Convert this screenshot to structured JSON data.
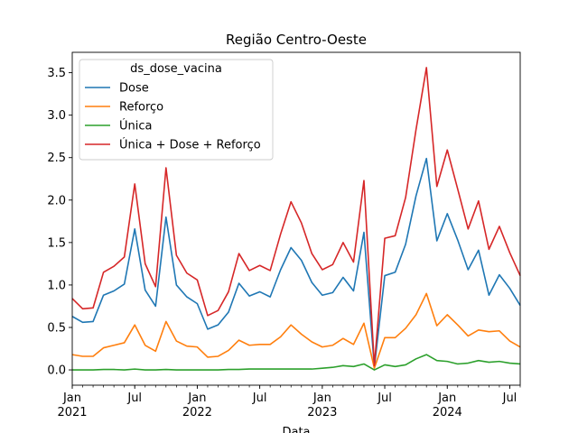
{
  "chart_data": {
    "type": "line",
    "title": "Região Centro-Oeste",
    "xlabel": "Data",
    "ylabel": "",
    "ylim": [
      -0.18,
      3.74
    ],
    "xlim": [
      "2021-01",
      "2024-08"
    ],
    "yticks": [
      0.0,
      0.5,
      1.0,
      1.5,
      2.0,
      2.5,
      3.0,
      3.5
    ],
    "ytick_labels": [
      "0.0",
      "0.5",
      "1.0",
      "1.5",
      "2.0",
      "2.5",
      "3.0",
      "3.5"
    ],
    "xticks": [
      {
        "x": "2021-01",
        "label": "Jan",
        "sublabel": "2021"
      },
      {
        "x": "2021-07",
        "label": "Jul",
        "sublabel": ""
      },
      {
        "x": "2022-01",
        "label": "Jan",
        "sublabel": "2022"
      },
      {
        "x": "2022-07",
        "label": "Jul",
        "sublabel": ""
      },
      {
        "x": "2023-01",
        "label": "Jan",
        "sublabel": "2023"
      },
      {
        "x": "2023-07",
        "label": "Jul",
        "sublabel": ""
      },
      {
        "x": "2024-01",
        "label": "Jan",
        "sublabel": "2024"
      },
      {
        "x": "2024-07",
        "label": "Jul",
        "sublabel": ""
      }
    ],
    "legend": {
      "title": "ds_dose_vacina",
      "placement": "upper-left"
    },
    "grid": false,
    "x": [
      "2021-01",
      "2021-02",
      "2021-03",
      "2021-04",
      "2021-05",
      "2021-06",
      "2021-07",
      "2021-08",
      "2021-09",
      "2021-10",
      "2021-11",
      "2021-12",
      "2022-01",
      "2022-02",
      "2022-03",
      "2022-04",
      "2022-05",
      "2022-06",
      "2022-07",
      "2022-08",
      "2022-09",
      "2022-10",
      "2022-11",
      "2022-12",
      "2023-01",
      "2023-02",
      "2023-03",
      "2023-04",
      "2023-05",
      "2023-06",
      "2023-07",
      "2023-08",
      "2023-09",
      "2023-10",
      "2023-11",
      "2023-12",
      "2024-01",
      "2024-02",
      "2024-03",
      "2024-04",
      "2024-05",
      "2024-06",
      "2024-07",
      "2024-08"
    ],
    "series": [
      {
        "name": "Dose",
        "color": "#1f77b4",
        "values": [
          0.63,
          0.56,
          0.57,
          0.88,
          0.93,
          1.01,
          1.66,
          0.94,
          0.75,
          1.8,
          1.0,
          0.86,
          0.78,
          0.48,
          0.53,
          0.68,
          1.02,
          0.87,
          0.92,
          0.86,
          1.18,
          1.44,
          1.29,
          1.03,
          0.88,
          0.91,
          1.09,
          0.93,
          1.62,
          0.03,
          1.11,
          1.15,
          1.48,
          2.05,
          2.49,
          1.52,
          1.84,
          1.53,
          1.18,
          1.41,
          0.88,
          1.12,
          0.96,
          0.76
        ]
      },
      {
        "name": "Reforço",
        "color": "#ff7f0e",
        "values": [
          0.18,
          0.16,
          0.16,
          0.26,
          0.29,
          0.32,
          0.53,
          0.29,
          0.22,
          0.57,
          0.34,
          0.28,
          0.27,
          0.15,
          0.16,
          0.23,
          0.35,
          0.29,
          0.3,
          0.3,
          0.39,
          0.53,
          0.42,
          0.33,
          0.27,
          0.29,
          0.37,
          0.3,
          0.55,
          0.02,
          0.38,
          0.38,
          0.49,
          0.65,
          0.9,
          0.52,
          0.65,
          0.53,
          0.4,
          0.47,
          0.45,
          0.46,
          0.34,
          0.27
        ]
      },
      {
        "name": "Única",
        "color": "#2ca02c",
        "values": [
          0.0,
          0.0,
          0.0,
          0.005,
          0.005,
          0.0,
          0.01,
          0.0,
          0.0,
          0.005,
          0.0,
          0.0,
          0.0,
          0.0,
          0.0,
          0.005,
          0.005,
          0.01,
          0.01,
          0.01,
          0.01,
          0.01,
          0.01,
          0.01,
          0.02,
          0.03,
          0.05,
          0.04,
          0.07,
          0.0,
          0.06,
          0.04,
          0.06,
          0.13,
          0.18,
          0.11,
          0.1,
          0.07,
          0.08,
          0.11,
          0.09,
          0.1,
          0.08,
          0.07
        ]
      },
      {
        "name": "Única + Dose + Reforço",
        "color": "#d62728",
        "values": [
          0.84,
          0.72,
          0.73,
          1.15,
          1.22,
          1.33,
          2.19,
          1.25,
          0.98,
          2.38,
          1.35,
          1.14,
          1.06,
          0.64,
          0.7,
          0.92,
          1.37,
          1.17,
          1.23,
          1.17,
          1.6,
          1.98,
          1.73,
          1.37,
          1.18,
          1.24,
          1.5,
          1.27,
          2.23,
          0.05,
          1.55,
          1.58,
          2.03,
          2.83,
          3.56,
          2.16,
          2.59,
          2.13,
          1.66,
          1.99,
          1.42,
          1.69,
          1.38,
          1.11
        ]
      }
    ]
  }
}
